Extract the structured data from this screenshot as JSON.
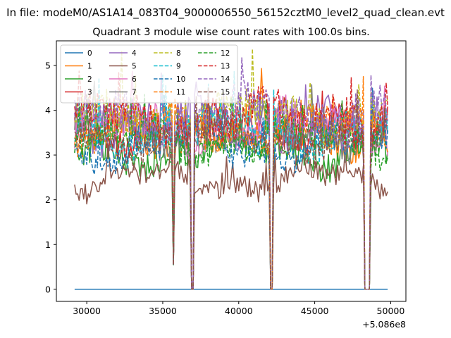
{
  "figure": {
    "suptitle": "In file: modeM0/AS1A14_083T04_9000006550_56152cztM0_level2_quad_clean.evt",
    "title": "Quadrant 3 module wise count rates with 100.0s bins.",
    "offset_text": "+5.086e8"
  },
  "chart_data": {
    "type": "line",
    "title": "Quadrant 3 module wise count rates with 100.0s bins.",
    "xlabel": "",
    "ylabel": "",
    "x_offset": 508600000,
    "xlim": [
      28000,
      51000
    ],
    "ylim": [
      -0.27,
      5.55
    ],
    "xticks": [
      30000,
      35000,
      40000,
      45000,
      50000
    ],
    "xtick_labels": [
      "30000",
      "35000",
      "40000",
      "45000",
      "50000"
    ],
    "yticks": [
      0,
      1,
      2,
      3,
      4,
      5
    ],
    "ytick_labels": [
      "0",
      "1",
      "2",
      "3",
      "4",
      "5"
    ],
    "grid": false,
    "legend_position": "top-left",
    "legend_columns": 4,
    "x_start": 29200,
    "x_end": 49800,
    "bin": 100,
    "gaps": [
      [
        35700,
        35700,
        0.55
      ],
      [
        36900,
        37000,
        0.0
      ],
      [
        42100,
        42200,
        0.0
      ],
      [
        48300,
        48600,
        0.0
      ]
    ],
    "series": [
      {
        "name": "0",
        "color": "#1f77b4",
        "dash": "solid",
        "level": 0.0,
        "amp": 0.0
      },
      {
        "name": "1",
        "color": "#ff7f0e",
        "dash": "solid",
        "level": 3.5,
        "amp": 0.35
      },
      {
        "name": "2",
        "color": "#2ca02c",
        "dash": "solid",
        "level": 3.1,
        "amp": 0.35
      },
      {
        "name": "3",
        "color": "#d62728",
        "dash": "solid",
        "level": 3.6,
        "amp": 0.35
      },
      {
        "name": "4",
        "color": "#9467bd",
        "dash": "solid",
        "level": 3.7,
        "amp": 0.4
      },
      {
        "name": "5",
        "color": "#8c564b",
        "dash": "solid",
        "level": 2.45,
        "amp": 0.25
      },
      {
        "name": "6",
        "color": "#e377c2",
        "dash": "solid",
        "level": 3.6,
        "amp": 0.4
      },
      {
        "name": "7",
        "color": "#7f7f7f",
        "dash": "solid",
        "level": 3.5,
        "amp": 0.35
      },
      {
        "name": "8",
        "color": "#bcbd22",
        "dash": "dashed",
        "level": 3.9,
        "amp": 0.45
      },
      {
        "name": "9",
        "color": "#17becf",
        "dash": "dashed",
        "level": 3.5,
        "amp": 0.4
      },
      {
        "name": "10",
        "color": "#1f77b4",
        "dash": "dashed",
        "level": 3.2,
        "amp": 0.35
      },
      {
        "name": "11",
        "color": "#ff7f0e",
        "dash": "dashed",
        "level": 3.6,
        "amp": 0.35
      },
      {
        "name": "12",
        "color": "#2ca02c",
        "dash": "dashed",
        "level": 3.3,
        "amp": 0.35
      },
      {
        "name": "13",
        "color": "#d62728",
        "dash": "dashed",
        "level": 3.8,
        "amp": 0.4
      },
      {
        "name": "14",
        "color": "#9467bd",
        "dash": "dashed",
        "level": 3.9,
        "amp": 0.45
      },
      {
        "name": "15",
        "color": "#8c564b",
        "dash": "dashed",
        "level": 3.4,
        "amp": 0.35
      }
    ]
  }
}
